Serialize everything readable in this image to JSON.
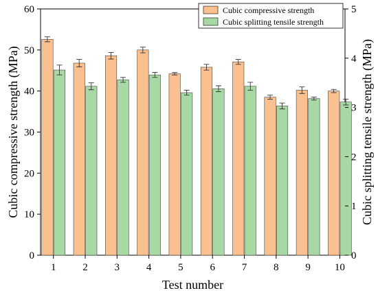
{
  "chart_data": {
    "type": "bar",
    "xlabel": "Test number",
    "categories": [
      "1",
      "2",
      "3",
      "4",
      "5",
      "6",
      "7",
      "8",
      "9",
      "10"
    ],
    "y_left": {
      "label": "Cubic compressive strength (MPa)",
      "range": [
        0,
        60
      ],
      "ticks": [
        0,
        10,
        20,
        30,
        40,
        50,
        60
      ]
    },
    "y_right": {
      "label": "Cubic splitting tensile strength (MPa)",
      "range": [
        0,
        5
      ],
      "ticks": [
        0,
        1,
        2,
        3,
        4,
        5
      ]
    },
    "grid": false,
    "legend_position": "top-right",
    "series": [
      {
        "name": "Cubic compressive strength",
        "axis": "left",
        "color": "#fac090",
        "values": [
          52.6,
          46.8,
          48.6,
          50.0,
          44.2,
          45.8,
          47.1,
          38.5,
          40.2,
          40.0
        ],
        "errors": [
          0.6,
          0.9,
          0.8,
          0.7,
          0.3,
          0.7,
          0.6,
          0.5,
          0.8,
          0.4
        ]
      },
      {
        "name": "Cubic splitting tensile strength",
        "axis": "right",
        "color": "#a8d9a4",
        "values": [
          3.76,
          3.43,
          3.56,
          3.66,
          3.3,
          3.38,
          3.43,
          3.03,
          3.18,
          3.11
        ],
        "errors": [
          0.1,
          0.07,
          0.05,
          0.05,
          0.05,
          0.06,
          0.08,
          0.06,
          0.03,
          0.06
        ]
      }
    ]
  }
}
